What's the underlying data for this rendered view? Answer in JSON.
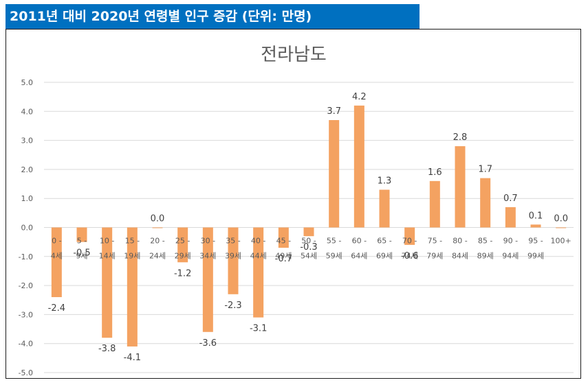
{
  "header": {
    "title": "2011년 대비 2020년 연령별 인구 증감 (단위: 만명)"
  },
  "colors": {
    "banner": "#0070c0",
    "bar": "#f4a261",
    "grid": "#d9d9d9"
  },
  "chart_data": {
    "type": "bar",
    "title": "전라남도",
    "xlabel": "",
    "ylabel": "",
    "ylim": [
      -5.0,
      5.0
    ],
    "yticks": [
      "5.0",
      "4.0",
      "3.0",
      "2.0",
      "1.0",
      "0.0",
      "-1.0",
      "-2.0",
      "-3.0",
      "-4.0",
      "-5.0"
    ],
    "grid": true,
    "categories": [
      {
        "l1": "0 -",
        "l2": "4세"
      },
      {
        "l1": "5 -",
        "l2": "9세"
      },
      {
        "l1": "10 -",
        "l2": "14세"
      },
      {
        "l1": "15 -",
        "l2": "19세"
      },
      {
        "l1": "20 -",
        "l2": "24세"
      },
      {
        "l1": "25 -",
        "l2": "29세"
      },
      {
        "l1": "30 -",
        "l2": "34세"
      },
      {
        "l1": "35 -",
        "l2": "39세"
      },
      {
        "l1": "40 -",
        "l2": "44세"
      },
      {
        "l1": "45 -",
        "l2": "49세"
      },
      {
        "l1": "50 -",
        "l2": "54세"
      },
      {
        "l1": "55 -",
        "l2": "59세"
      },
      {
        "l1": "60 -",
        "l2": "64세"
      },
      {
        "l1": "65 -",
        "l2": "69세"
      },
      {
        "l1": "70 -",
        "l2": "74세"
      },
      {
        "l1": "75 -",
        "l2": "79세"
      },
      {
        "l1": "80 -",
        "l2": "84세"
      },
      {
        "l1": "85 -",
        "l2": "89세"
      },
      {
        "l1": "90 -",
        "l2": "94세"
      },
      {
        "l1": "95 -",
        "l2": "99세"
      },
      {
        "l1": "100+",
        "l2": ""
      }
    ],
    "values": [
      -2.4,
      -0.5,
      -3.8,
      -4.1,
      0.0,
      -1.2,
      -3.6,
      -2.3,
      -3.1,
      -0.7,
      -0.3,
      3.7,
      4.2,
      1.3,
      -0.6,
      1.6,
      2.8,
      1.7,
      0.7,
      0.1,
      0.0
    ],
    "labels": [
      "-2.4",
      "-0.5",
      "-3.8",
      "-4.1",
      "0.0",
      "-1.2",
      "-3.6",
      "-2.3",
      "-3.1",
      "-0.7",
      "-0.3",
      "3.7",
      "4.2",
      "1.3",
      "-0.6",
      "1.6",
      "2.8",
      "1.7",
      "0.7",
      "0.1",
      "0.0"
    ]
  }
}
